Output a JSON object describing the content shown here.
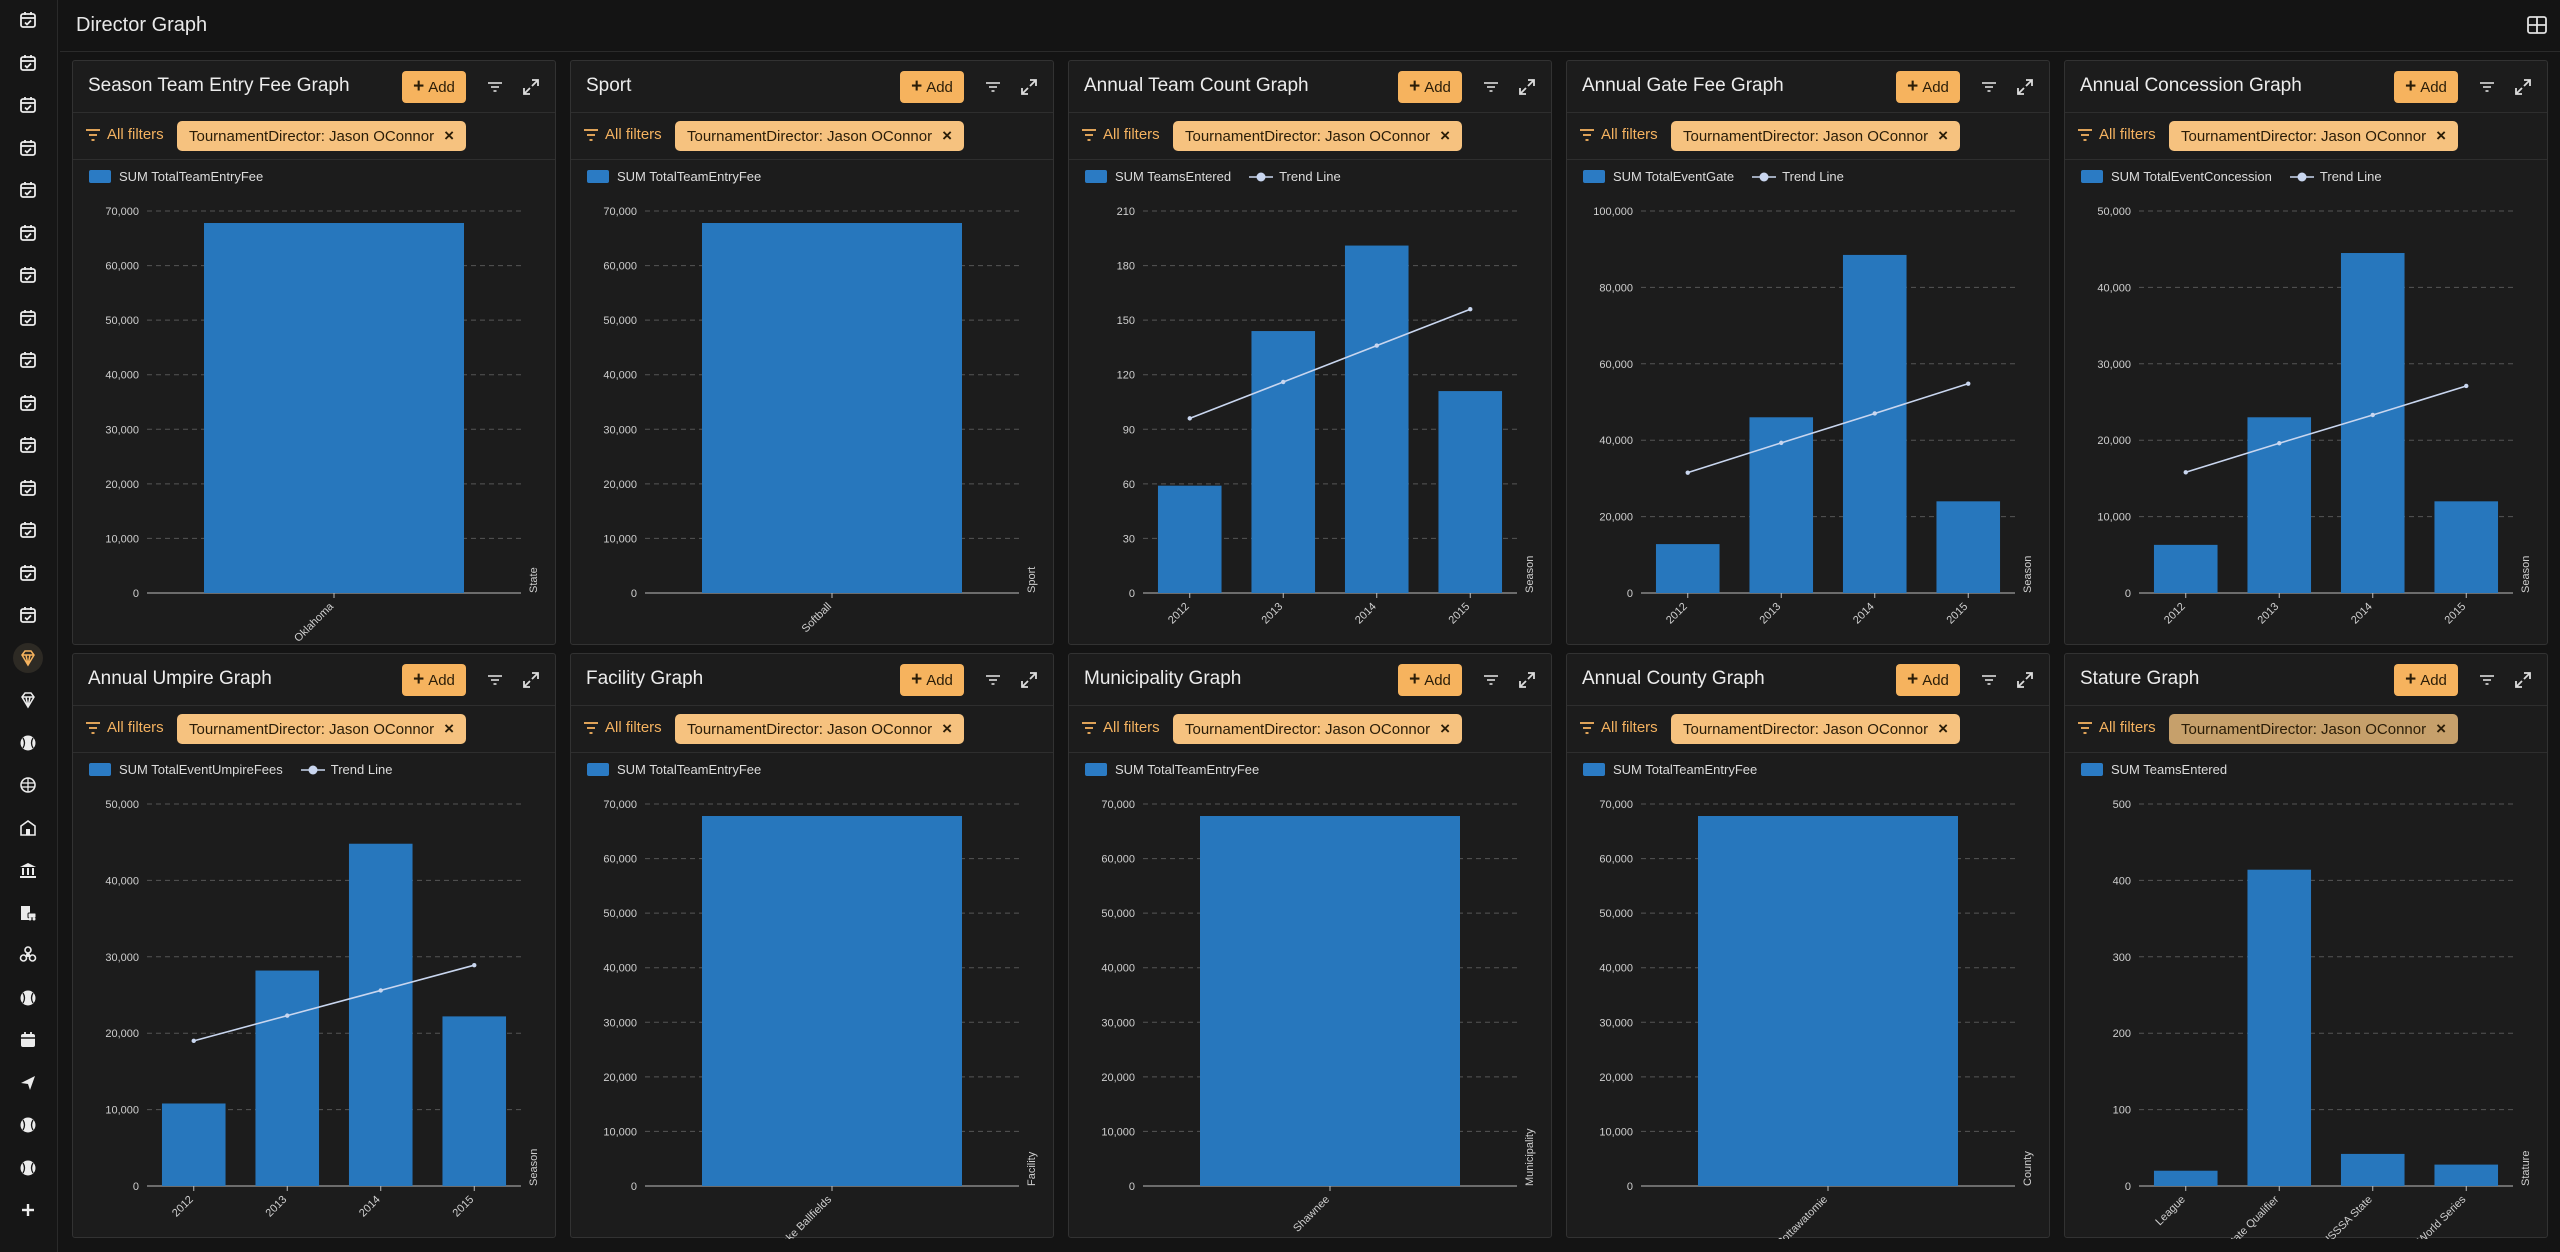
{
  "page": {
    "title": "Director Graph",
    "layout_icon": "grid-layout-icon"
  },
  "colors": {
    "accent": "#f6b35e",
    "chip": "#f6c27f",
    "bar": "#2777bd",
    "trend": "#c9d6ef",
    "background": "#141414",
    "panel": "#1c1c1c"
  },
  "rail": {
    "icons": [
      "calendar-check-icon",
      "calendar-check-icon",
      "calendar-check-icon",
      "calendar-check-icon",
      "calendar-check-icon",
      "calendar-check-icon",
      "calendar-check-icon",
      "calendar-check-icon",
      "calendar-check-icon",
      "calendar-check-icon",
      "calendar-check-icon",
      "calendar-check-icon",
      "calendar-check-icon",
      "calendar-check-icon",
      "calendar-check-icon",
      "diamond-icon",
      "diamond-icon",
      "baseball-icon",
      "mask-icon",
      "building-icon",
      "bank-icon",
      "building-car-icon",
      "biohazard-icon",
      "baseball-icon",
      "calendar-icon",
      "send-icon",
      "baseball-icon",
      "baseball-icon",
      "plus-icon"
    ],
    "active_index": 15
  },
  "common": {
    "add_label": "Add",
    "all_filters_label": "All filters",
    "filter_chip": "TournamentDirector: Jason OConnor",
    "trend_label": "Trend Line"
  },
  "panels": [
    {
      "title": "Season Team Entry Fee Graph",
      "chart_data": {
        "type": "bar",
        "series": [
          {
            "name": "SUM TotalTeamEntryFee",
            "values": [
              67800
            ]
          }
        ],
        "categories": [
          "Oklahoma"
        ],
        "xlabel": "State",
        "ylim": [
          0,
          70000
        ],
        "yticks": [
          "0",
          "10,000",
          "20,000",
          "30,000",
          "40,000",
          "50,000",
          "60,000",
          "70,000"
        ],
        "trend": null,
        "grid": true
      }
    },
    {
      "title": "Sport",
      "chart_data": {
        "type": "bar",
        "series": [
          {
            "name": "SUM TotalTeamEntryFee",
            "values": [
              67800
            ]
          }
        ],
        "categories": [
          "Softball"
        ],
        "xlabel": "Sport",
        "ylim": [
          0,
          70000
        ],
        "yticks": [
          "0",
          "10,000",
          "20,000",
          "30,000",
          "40,000",
          "50,000",
          "60,000",
          "70,000"
        ],
        "trend": null,
        "grid": true
      }
    },
    {
      "title": "Annual Team Count Graph",
      "chart_data": {
        "type": "bar",
        "series": [
          {
            "name": "SUM TeamsEntered",
            "values": [
              59,
              144,
              191,
              111
            ]
          }
        ],
        "categories": [
          "2012",
          "2013",
          "2014",
          "2015"
        ],
        "xlabel": "Season",
        "ylim": [
          0,
          210
        ],
        "yticks": [
          "0",
          "30",
          "60",
          "90",
          "120",
          "150",
          "180",
          "210"
        ],
        "trend": [
          96,
          116,
          136,
          156
        ],
        "grid": true
      }
    },
    {
      "title": "Annual Gate Fee Graph",
      "chart_data": {
        "type": "bar",
        "series": [
          {
            "name": "SUM TotalEventGate",
            "values": [
              12800,
              46000,
              88500,
              24000
            ]
          }
        ],
        "categories": [
          "2012",
          "2013",
          "2014",
          "2015"
        ],
        "xlabel": "Season",
        "ylim": [
          0,
          100000
        ],
        "yticks": [
          "0",
          "20,000",
          "40,000",
          "60,000",
          "80,000",
          "100,000"
        ],
        "trend": [
          31500,
          39300,
          47000,
          54800
        ],
        "grid": true
      }
    },
    {
      "title": "Annual Concession Graph",
      "chart_data": {
        "type": "bar",
        "series": [
          {
            "name": "SUM TotalEventConcession",
            "values": [
              6300,
              23000,
              44500,
              12000
            ]
          }
        ],
        "categories": [
          "2012",
          "2013",
          "2014",
          "2015"
        ],
        "xlabel": "Season",
        "ylim": [
          0,
          50000
        ],
        "yticks": [
          "0",
          "10,000",
          "20,000",
          "30,000",
          "40,000",
          "50,000"
        ],
        "trend": [
          15800,
          19600,
          23300,
          27100
        ],
        "grid": true
      }
    },
    {
      "title": "Annual Umpire Graph",
      "chart_data": {
        "type": "bar",
        "series": [
          {
            "name": "SUM TotalEventUmpireFees",
            "values": [
              10800,
              28200,
              44800,
              22200
            ]
          }
        ],
        "categories": [
          "2012",
          "2013",
          "2014",
          "2015"
        ],
        "xlabel": "Season",
        "ylim": [
          0,
          50000
        ],
        "yticks": [
          "0",
          "10,000",
          "20,000",
          "30,000",
          "40,000",
          "50,000"
        ],
        "trend": [
          19000,
          22300,
          25600,
          28900
        ],
        "grid": true
      }
    },
    {
      "title": "Facility Graph",
      "chart_data": {
        "type": "bar",
        "series": [
          {
            "name": "SUM TotalTeamEntryFee",
            "values": [
              67800
            ]
          }
        ],
        "categories": [
          "Firelake Ballfields"
        ],
        "xlabel": "Facility",
        "ylim": [
          0,
          70000
        ],
        "yticks": [
          "0",
          "10,000",
          "20,000",
          "30,000",
          "40,000",
          "50,000",
          "60,000",
          "70,000"
        ],
        "trend": null,
        "grid": true
      }
    },
    {
      "title": "Municipality Graph",
      "chart_data": {
        "type": "bar",
        "series": [
          {
            "name": "SUM TotalTeamEntryFee",
            "values": [
              67800
            ]
          }
        ],
        "categories": [
          "Shawnee"
        ],
        "xlabel": "Municipality",
        "ylim": [
          0,
          70000
        ],
        "yticks": [
          "0",
          "10,000",
          "20,000",
          "30,000",
          "40,000",
          "50,000",
          "60,000",
          "70,000"
        ],
        "trend": null,
        "grid": true
      }
    },
    {
      "title": "Annual County Graph",
      "chart_data": {
        "type": "bar",
        "series": [
          {
            "name": "SUM TotalTeamEntryFee",
            "values": [
              67800
            ]
          }
        ],
        "categories": [
          "Pottawatomie"
        ],
        "xlabel": "County",
        "ylim": [
          0,
          70000
        ],
        "yticks": [
          "0",
          "10,000",
          "20,000",
          "30,000",
          "40,000",
          "50,000",
          "60,000",
          "70,000"
        ],
        "trend": null,
        "grid": true
      }
    },
    {
      "title": "Stature Graph",
      "chart_data": {
        "type": "bar",
        "series": [
          {
            "name": "SUM TeamsEntered",
            "values": [
              20,
              414,
              42,
              28
            ]
          }
        ],
        "categories": [
          "League",
          "State Qualifier",
          "USSSA State",
          "World Series"
        ],
        "xlabel": "Stature",
        "ylim": [
          0,
          500
        ],
        "yticks": [
          "0",
          "100",
          "200",
          "300",
          "400",
          "500"
        ],
        "trend": null,
        "grid": true,
        "chip_dim": true
      }
    }
  ]
}
